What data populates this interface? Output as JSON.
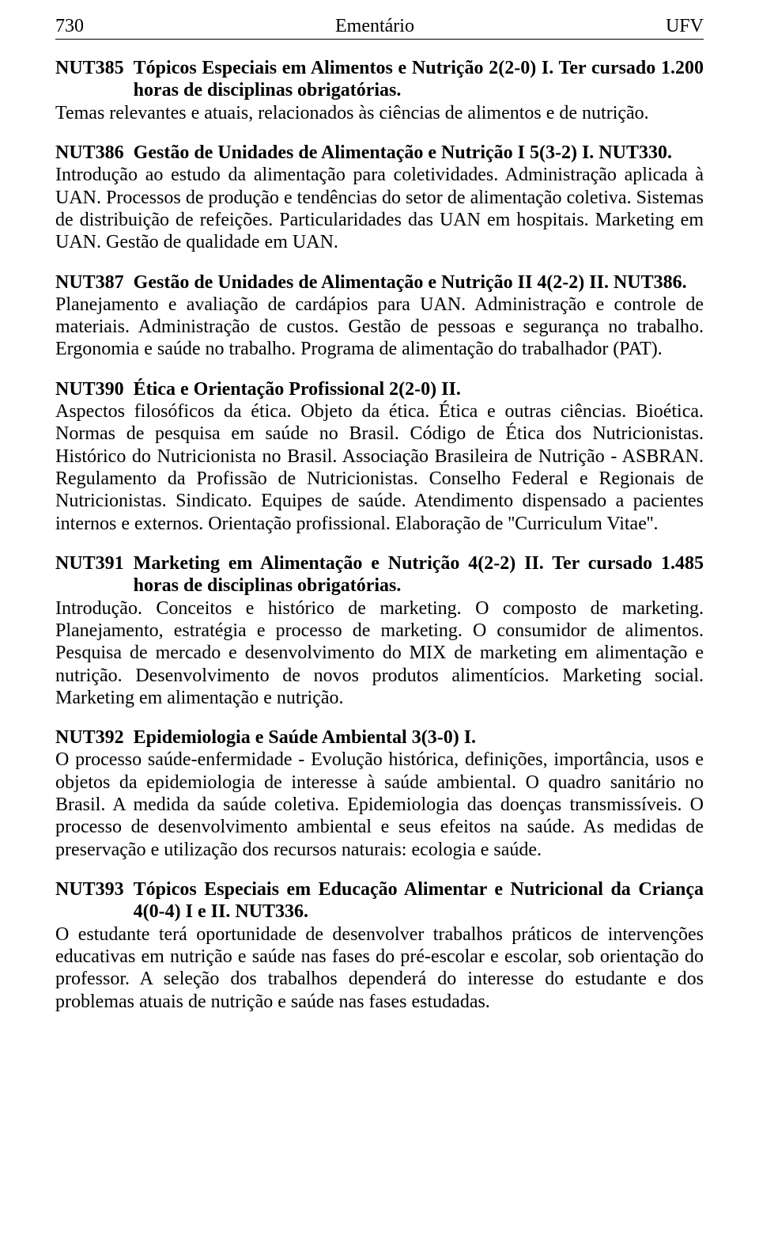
{
  "header": {
    "page_number": "730",
    "center": "Ementário",
    "right": "UFV"
  },
  "courses": [
    {
      "code": "NUT385",
      "title": "Tópicos Especiais em Alimentos e Nutrição 2(2-0) I.  Ter cursado 1.200 horas de disciplinas obrigatórias.",
      "desc": "Temas relevantes e atuais, relacionados às ciências de alimentos e de nutrição."
    },
    {
      "code": "NUT386",
      "title": "Gestão de Unidades de Alimentação e Nutrição I 5(3-2) I.  NUT330.",
      "desc": "Introdução ao estudo da alimentação para coletividades. Administração aplicada à UAN. Processos de produção e tendências do setor de alimentação coletiva. Sistemas de distribuição de refeições. Particularidades das UAN em hospitais. Marketing em UAN. Gestão de qualidade em UAN."
    },
    {
      "code": "NUT387",
      "title": "Gestão de Unidades de Alimentação e Nutrição II 4(2-2) II. NUT386.",
      "desc": "Planejamento e avaliação de cardápios para UAN. Administração e controle de materiais. Administração de custos. Gestão de pessoas e segurança no trabalho. Ergonomia e saúde no trabalho. Programa de alimentação do trabalhador (PAT)."
    },
    {
      "code": "NUT390",
      "title": "Ética e Orientação Profissional 2(2-0) II.",
      "desc": "Aspectos filosóficos da ética. Objeto da ética. Ética e outras ciências. Bioética. Normas de pesquisa em saúde no Brasil. Código de Ética dos Nutricionistas. Histórico do Nutricionista no Brasil. Associação Brasileira de Nutrição - ASBRAN. Regulamento da Profissão de Nutricionistas. Conselho Federal e Regionais de Nutricionistas. Sindicato. Equipes de saúde. Atendimento dispensado a pacientes internos e externos. Orientação profissional. Elaboração de ''Curriculum Vitae''."
    },
    {
      "code": "NUT391",
      "title": "Marketing em Alimentação e Nutrição 4(2-2) II.  Ter cursado 1.485 horas de disciplinas obrigatórias.",
      "desc": "Introdução. Conceitos e histórico de marketing. O composto de marketing. Planejamento, estratégia e processo de marketing. O consumidor de alimentos. Pesquisa de mercado e desenvolvimento do MIX de marketing em alimentação e nutrição. Desenvolvimento de novos produtos alimentícios. Marketing social. Marketing em alimentação e nutrição."
    },
    {
      "code": "NUT392",
      "title": "Epidemiologia e Saúde Ambiental 3(3-0) I.",
      "desc": "O processo saúde-enfermidade - Evolução histórica, definições, importância, usos e objetos da epidemiologia de interesse à saúde ambiental. O quadro sanitário no Brasil. A medida da saúde coletiva. Epidemiologia das doenças transmissíveis. O processo de desenvolvimento ambiental e seus efeitos na saúde. As medidas de preservação e utilização dos recursos naturais: ecologia e saúde."
    },
    {
      "code": "NUT393",
      "title": "Tópicos Especiais em Educação Alimentar e Nutricional da Criança 4(0-4) I e II. NUT336.",
      "desc": "O estudante terá oportunidade de desenvolver trabalhos práticos de intervenções educativas em nutrição e saúde nas fases do pré-escolar e escolar, sob orientação do professor. A seleção dos trabalhos dependerá do interesse do estudante e dos problemas atuais de nutrição e saúde nas fases estudadas."
    }
  ]
}
